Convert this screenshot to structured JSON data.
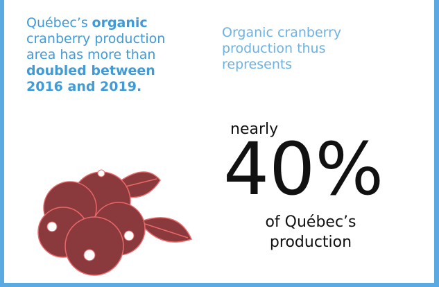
{
  "lead": {
    "lines": [
      [
        {
          "text": "Québec’s"
        },
        {
          "text": "organic",
          "bold": true
        }
      ],
      [
        {
          "text": "cranberry production"
        }
      ],
      [
        {
          "text": "area has more than"
        }
      ],
      [
        {
          "text": "doubled between",
          "bold": true
        }
      ],
      [
        {
          "text": "2016 and 2019.",
          "bold": true
        }
      ]
    ]
  },
  "side_text": "Organic cranberry production thus represents",
  "stat": {
    "prefix": "nearly",
    "value": "40%",
    "suffix": "of Québec’s production"
  }
}
